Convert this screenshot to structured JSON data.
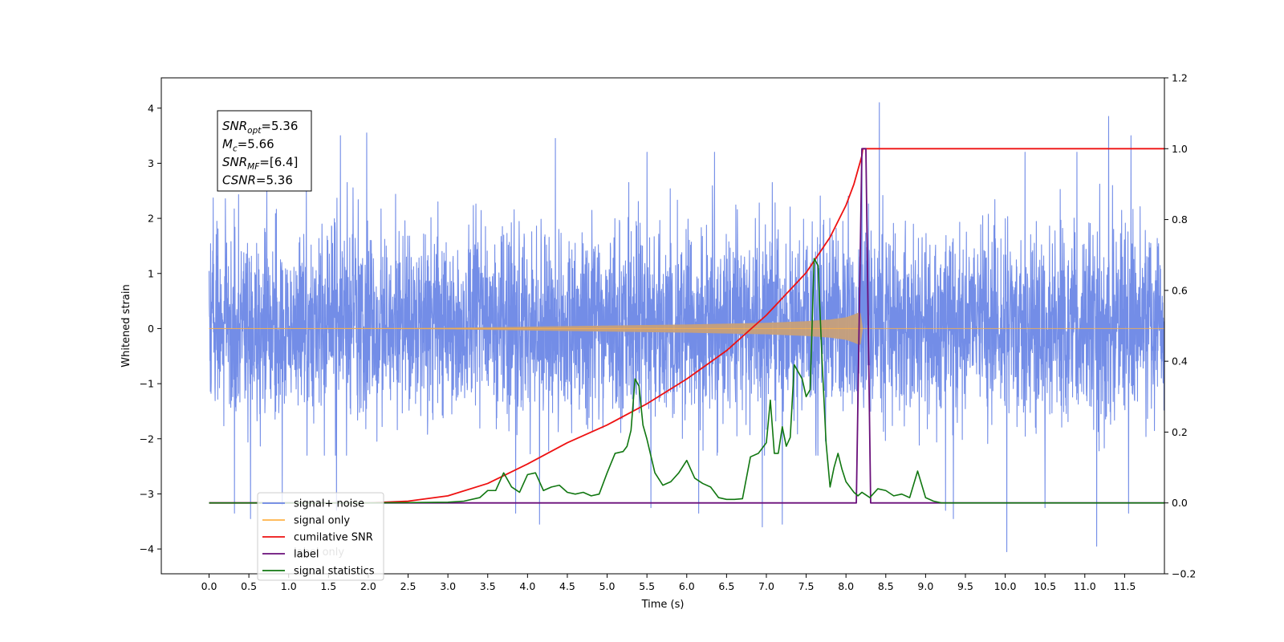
{
  "chart_data": {
    "type": "line",
    "title": "",
    "xlabel": "Time (s)",
    "ylabel": "Whitened strain",
    "y2label": "",
    "xlim": [
      -0.6,
      12.0
    ],
    "ylim": [
      -4.45,
      4.55
    ],
    "y2lim": [
      -0.2,
      1.2
    ],
    "x_ticks": [
      0.0,
      0.5,
      1.0,
      1.5,
      2.0,
      2.5,
      3.0,
      3.5,
      4.0,
      4.5,
      5.0,
      5.5,
      6.0,
      6.5,
      7.0,
      7.5,
      8.0,
      8.5,
      9.0,
      9.5,
      10.0,
      10.5,
      11.0,
      11.5
    ],
    "x_tick_labels": [
      "0.0",
      "0.5",
      "1.0",
      "1.5",
      "2.0",
      "2.5",
      "3.0",
      "3.5",
      "4.0",
      "4.5",
      "5.0",
      "5.5",
      "6.0",
      "6.5",
      "7.0",
      "7.5",
      "8.0",
      "8.5",
      "9.0",
      "9.5",
      "10.0",
      "10.5",
      "11.0",
      "11.5"
    ],
    "y_ticks": [
      -4,
      -3,
      -2,
      -1,
      0,
      1,
      2,
      3,
      4
    ],
    "y_tick_labels": [
      "−4",
      "−3",
      "−2",
      "−1",
      "0",
      "1",
      "2",
      "3",
      "4"
    ],
    "y2_ticks": [
      -0.2,
      0.0,
      0.2,
      0.4,
      0.6,
      0.8,
      1.0,
      1.2
    ],
    "y2_tick_labels": [
      "−0.2",
      "0.0",
      "0.2",
      "0.4",
      "0.6",
      "0.8",
      "1.0",
      "1.2"
    ],
    "grid": false,
    "legend_position": "lower-left",
    "colors": {
      "noise": "#6b87e6",
      "signal": "#ffb347",
      "overlap": "#c8a07a",
      "csnr": "#ee1111",
      "label": "#6a0f7a",
      "stats": "#117711",
      "label_only": "#ffb0ff"
    },
    "annotation": {
      "lines": [
        {
          "main": "SNR",
          "sub": "opt",
          "rest": "=5.36"
        },
        {
          "main": "M",
          "sub": "c",
          "rest": "=5.66"
        },
        {
          "main": "SNR",
          "sub": "MF",
          "rest": "=[6.4]"
        },
        {
          "main": "CSNR",
          "sub": "",
          "rest": "=5.36"
        }
      ]
    },
    "legend": [
      {
        "label": "signal+ noise",
        "color": "#6b87e6"
      },
      {
        "label": "signal only",
        "color": "#ffb347"
      },
      {
        "label": "cumilative SNR",
        "color": "#ee1111"
      },
      {
        "label": "label",
        "color": "#6a0f7a"
      },
      {
        "label": "signal statistics",
        "color": "#117711"
      }
    ],
    "hidden_legend_labels": [
      "label only"
    ],
    "series": [
      {
        "name": "signal+ noise",
        "axis": "left",
        "style": "noise",
        "x_range": [
          0.0,
          12.0
        ],
        "typical_range": [
          -1.9,
          2.1
        ],
        "spikes": [
          [
            0.32,
            -3.35
          ],
          [
            0.52,
            -3.45
          ],
          [
            0.92,
            -3.2
          ],
          [
            1.6,
            -3.3
          ],
          [
            1.65,
            3.5
          ],
          [
            1.98,
            3.55
          ],
          [
            3.85,
            -3.35
          ],
          [
            4.15,
            -3.55
          ],
          [
            4.35,
            3.45
          ],
          [
            5.5,
            3.2
          ],
          [
            5.55,
            -3.25
          ],
          [
            6.15,
            -3.35
          ],
          [
            6.35,
            3.2
          ],
          [
            6.95,
            -3.6
          ],
          [
            7.2,
            -3.55
          ],
          [
            8.2,
            3.2
          ],
          [
            8.42,
            4.1
          ],
          [
            9.25,
            -3.3
          ],
          [
            9.35,
            -3.45
          ],
          [
            10.02,
            -4.05
          ],
          [
            10.25,
            3.2
          ],
          [
            10.5,
            -3.25
          ],
          [
            10.9,
            3.2
          ],
          [
            11.15,
            -3.95
          ],
          [
            11.3,
            3.85
          ],
          [
            11.58,
            3.5
          ],
          [
            11.55,
            -3.35
          ]
        ]
      },
      {
        "name": "signal only",
        "axis": "left",
        "style": "signal",
        "envelope": [
          [
            0.0,
            0.0
          ],
          [
            2.5,
            0.005
          ],
          [
            3.0,
            0.01
          ],
          [
            4.0,
            0.03
          ],
          [
            5.0,
            0.05
          ],
          [
            6.0,
            0.07
          ],
          [
            7.0,
            0.1
          ],
          [
            7.5,
            0.13
          ],
          [
            7.8,
            0.16
          ],
          [
            8.0,
            0.2
          ],
          [
            8.1,
            0.25
          ],
          [
            8.18,
            0.3
          ],
          [
            8.21,
            0.0
          ],
          [
            12.0,
            0.0
          ]
        ]
      },
      {
        "name": "cumilative SNR",
        "axis": "right",
        "x": [
          0.0,
          2.0,
          2.5,
          3.0,
          3.5,
          4.0,
          4.5,
          5.0,
          5.5,
          6.0,
          6.5,
          7.0,
          7.5,
          7.8,
          8.0,
          8.1,
          8.2,
          8.21,
          12.0
        ],
        "y": [
          0.0,
          0.0,
          0.005,
          0.02,
          0.055,
          0.11,
          0.17,
          0.22,
          0.28,
          0.35,
          0.43,
          0.53,
          0.65,
          0.75,
          0.84,
          0.9,
          0.98,
          1.0,
          1.0
        ]
      },
      {
        "name": "label",
        "axis": "right",
        "x": [
          0.0,
          8.13,
          8.2,
          8.25,
          8.31,
          12.0
        ],
        "y": [
          0.0,
          0.0,
          1.0,
          1.0,
          0.0,
          0.0
        ]
      },
      {
        "name": "signal statistics",
        "axis": "right",
        "x": [
          0.0,
          2.0,
          3.0,
          3.2,
          3.4,
          3.5,
          3.6,
          3.7,
          3.8,
          3.9,
          4.0,
          4.1,
          4.2,
          4.3,
          4.4,
          4.5,
          4.6,
          4.7,
          4.8,
          4.9,
          5.0,
          5.1,
          5.2,
          5.25,
          5.3,
          5.35,
          5.4,
          5.45,
          5.5,
          5.6,
          5.7,
          5.8,
          5.9,
          6.0,
          6.1,
          6.2,
          6.3,
          6.4,
          6.5,
          6.6,
          6.7,
          6.8,
          6.9,
          7.0,
          7.05,
          7.1,
          7.15,
          7.2,
          7.25,
          7.3,
          7.35,
          7.4,
          7.45,
          7.5,
          7.55,
          7.6,
          7.65,
          7.7,
          7.75,
          7.8,
          7.85,
          7.9,
          7.95,
          8.0,
          8.05,
          8.1,
          8.15,
          8.2,
          8.3,
          8.4,
          8.5,
          8.6,
          8.7,
          8.8,
          8.9,
          9.0,
          9.1,
          9.2,
          9.25,
          9.3,
          9.4,
          9.5,
          12.0
        ],
        "y": [
          0.0,
          0.0,
          0.002,
          0.005,
          0.015,
          0.035,
          0.035,
          0.085,
          0.045,
          0.03,
          0.08,
          0.085,
          0.035,
          0.045,
          0.05,
          0.03,
          0.025,
          0.03,
          0.02,
          0.025,
          0.085,
          0.14,
          0.145,
          0.16,
          0.205,
          0.35,
          0.33,
          0.22,
          0.18,
          0.085,
          0.05,
          0.06,
          0.085,
          0.12,
          0.07,
          0.055,
          0.045,
          0.015,
          0.01,
          0.01,
          0.012,
          0.13,
          0.14,
          0.17,
          0.29,
          0.14,
          0.14,
          0.215,
          0.16,
          0.185,
          0.39,
          0.37,
          0.35,
          0.3,
          0.32,
          0.69,
          0.67,
          0.4,
          0.17,
          0.045,
          0.1,
          0.14,
          0.095,
          0.06,
          0.045,
          0.03,
          0.02,
          0.03,
          0.015,
          0.04,
          0.035,
          0.02,
          0.025,
          0.015,
          0.09,
          0.015,
          0.005,
          0.0,
          0.0,
          0.0,
          0.0,
          0.0,
          0.0
        ]
      }
    ]
  }
}
